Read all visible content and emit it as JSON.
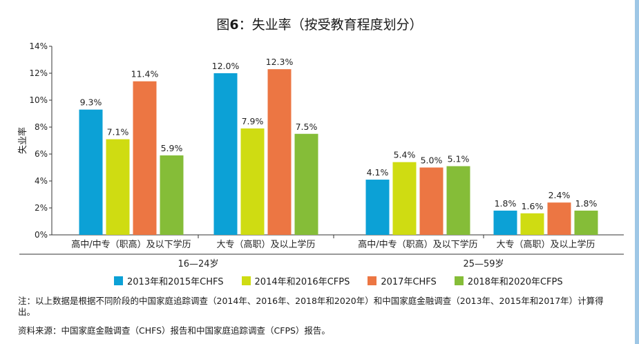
{
  "title_prefix": "图",
  "title_num": "6",
  "title_rest": "：失业率（按受教育程度划分）",
  "colors": [
    "#0ca1d6",
    "#cfdc12",
    "#ec7643",
    "#85bd38"
  ],
  "chart_data": {
    "type": "bar",
    "ylabel": "失业率",
    "ylim": [
      0,
      14
    ],
    "yticks": [
      "0%",
      "2%",
      "4%",
      "6%",
      "8%",
      "10%",
      "12%",
      "14%"
    ],
    "grid": false,
    "legend_position": "bottom",
    "groups": [
      "16—24岁",
      "25—59岁"
    ],
    "categories": [
      "高中/中专（职高）及以下学历",
      "大专（高职）及以上学历",
      "高中/中专（职高）及以下学历",
      "大专（高职）及以上学历"
    ],
    "series": [
      {
        "name": "2013年和2015年CHFS",
        "values": [
          9.3,
          12.0,
          4.1,
          1.8
        ],
        "labels": [
          "9.3%",
          "12.0%",
          "4.1%",
          "1.8%"
        ]
      },
      {
        "name": "2014年和2016年CFPS",
        "values": [
          7.1,
          7.9,
          5.4,
          1.6
        ],
        "labels": [
          "7.1%",
          "7.9%",
          "5.4%",
          "1.6%"
        ]
      },
      {
        "name": "2017年CHFS",
        "values": [
          11.4,
          12.3,
          5.0,
          2.4
        ],
        "labels": [
          "11.4%",
          "12.3%",
          "5.0%",
          "2.4%"
        ]
      },
      {
        "name": "2018年和2020年CFPS",
        "values": [
          5.9,
          7.5,
          5.1,
          1.8
        ],
        "labels": [
          "5.9%",
          "7.5%",
          "5.1%",
          "1.8%"
        ]
      }
    ]
  },
  "note": "注：以上数据是根据不同阶段的中国家庭追踪调查（2014年、2016年、2018年和2020年）和中国家庭金融调查（2013年、2015年和2017年）计算得出。",
  "source": "资料来源：中国家庭金融调查（CHFS）报告和中国家庭追踪调查（CFPS）报告。"
}
